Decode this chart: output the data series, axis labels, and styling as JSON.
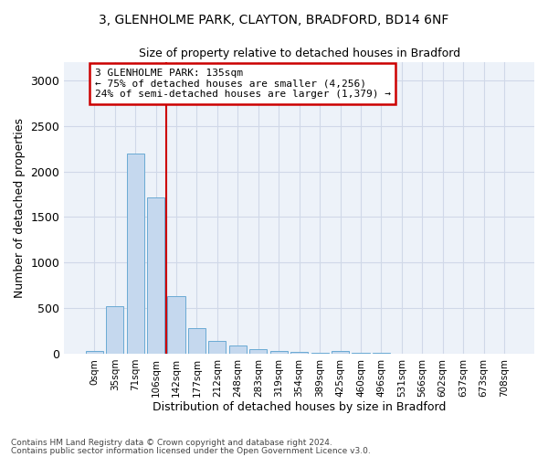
{
  "title_line1": "3, GLENHOLME PARK, CLAYTON, BRADFORD, BD14 6NF",
  "title_line2": "Size of property relative to detached houses in Bradford",
  "xlabel": "Distribution of detached houses by size in Bradford",
  "ylabel": "Number of detached properties",
  "bar_color": "#c5d8ee",
  "bar_edge_color": "#6aaad4",
  "categories": [
    "0sqm",
    "35sqm",
    "71sqm",
    "106sqm",
    "142sqm",
    "177sqm",
    "212sqm",
    "248sqm",
    "283sqm",
    "319sqm",
    "354sqm",
    "389sqm",
    "425sqm",
    "460sqm",
    "496sqm",
    "531sqm",
    "566sqm",
    "602sqm",
    "637sqm",
    "673sqm",
    "708sqm"
  ],
  "values": [
    28,
    520,
    2200,
    1720,
    635,
    280,
    145,
    85,
    48,
    33,
    20,
    10,
    28,
    6,
    5,
    0,
    0,
    0,
    0,
    0,
    0
  ],
  "ylim": [
    0,
    3200
  ],
  "yticks": [
    0,
    500,
    1000,
    1500,
    2000,
    2500,
    3000
  ],
  "vline_x": 3.5,
  "marker_label_line1": "3 GLENHOLME PARK: 135sqm",
  "marker_label_line2": "← 75% of detached houses are smaller (4,256)",
  "marker_label_line3": "24% of semi-detached houses are larger (1,379) →",
  "annotation_box_facecolor": "#ffffff",
  "annotation_box_edgecolor": "#cc0000",
  "marker_line_color": "#cc0000",
  "grid_color": "#d0d8e8",
  "plot_bg_color": "#edf2f9",
  "footer_line1": "Contains HM Land Registry data © Crown copyright and database right 2024.",
  "footer_line2": "Contains public sector information licensed under the Open Government Licence v3.0."
}
